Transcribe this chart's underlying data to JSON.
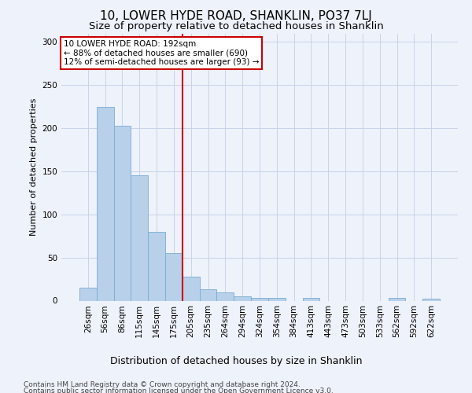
{
  "title": "10, LOWER HYDE ROAD, SHANKLIN, PO37 7LJ",
  "subtitle": "Size of property relative to detached houses in Shanklin",
  "xlabel": "Distribution of detached houses by size in Shanklin",
  "ylabel": "Number of detached properties",
  "categories": [
    "26sqm",
    "56sqm",
    "86sqm",
    "115sqm",
    "145sqm",
    "175sqm",
    "205sqm",
    "235sqm",
    "264sqm",
    "294sqm",
    "324sqm",
    "354sqm",
    "384sqm",
    "413sqm",
    "443sqm",
    "473sqm",
    "503sqm",
    "533sqm",
    "562sqm",
    "592sqm",
    "622sqm"
  ],
  "values": [
    15,
    225,
    203,
    145,
    80,
    55,
    28,
    13,
    10,
    5,
    3,
    3,
    0,
    3,
    0,
    0,
    0,
    0,
    3,
    0,
    2
  ],
  "bar_color": "#b8d0ea",
  "bar_edge_color": "#7aacd4",
  "grid_color": "#c8d4e8",
  "background_color": "#eef2fa",
  "vline_x_index": 6,
  "vline_color": "#cc0000",
  "annotation_title": "10 LOWER HYDE ROAD: 192sqm",
  "annotation_line1": "← 88% of detached houses are smaller (690)",
  "annotation_line2": "12% of semi-detached houses are larger (93) →",
  "annotation_box_facecolor": "#ffffff",
  "annotation_box_edgecolor": "#cc0000",
  "footer1": "Contains HM Land Registry data © Crown copyright and database right 2024.",
  "footer2": "Contains public sector information licensed under the Open Government Licence v3.0.",
  "ylim": [
    0,
    310
  ],
  "title_fontsize": 11,
  "subtitle_fontsize": 9.5,
  "ylabel_fontsize": 8,
  "xlabel_fontsize": 9,
  "tick_fontsize": 7.5,
  "annotation_fontsize": 7.5,
  "footer_fontsize": 6.5
}
